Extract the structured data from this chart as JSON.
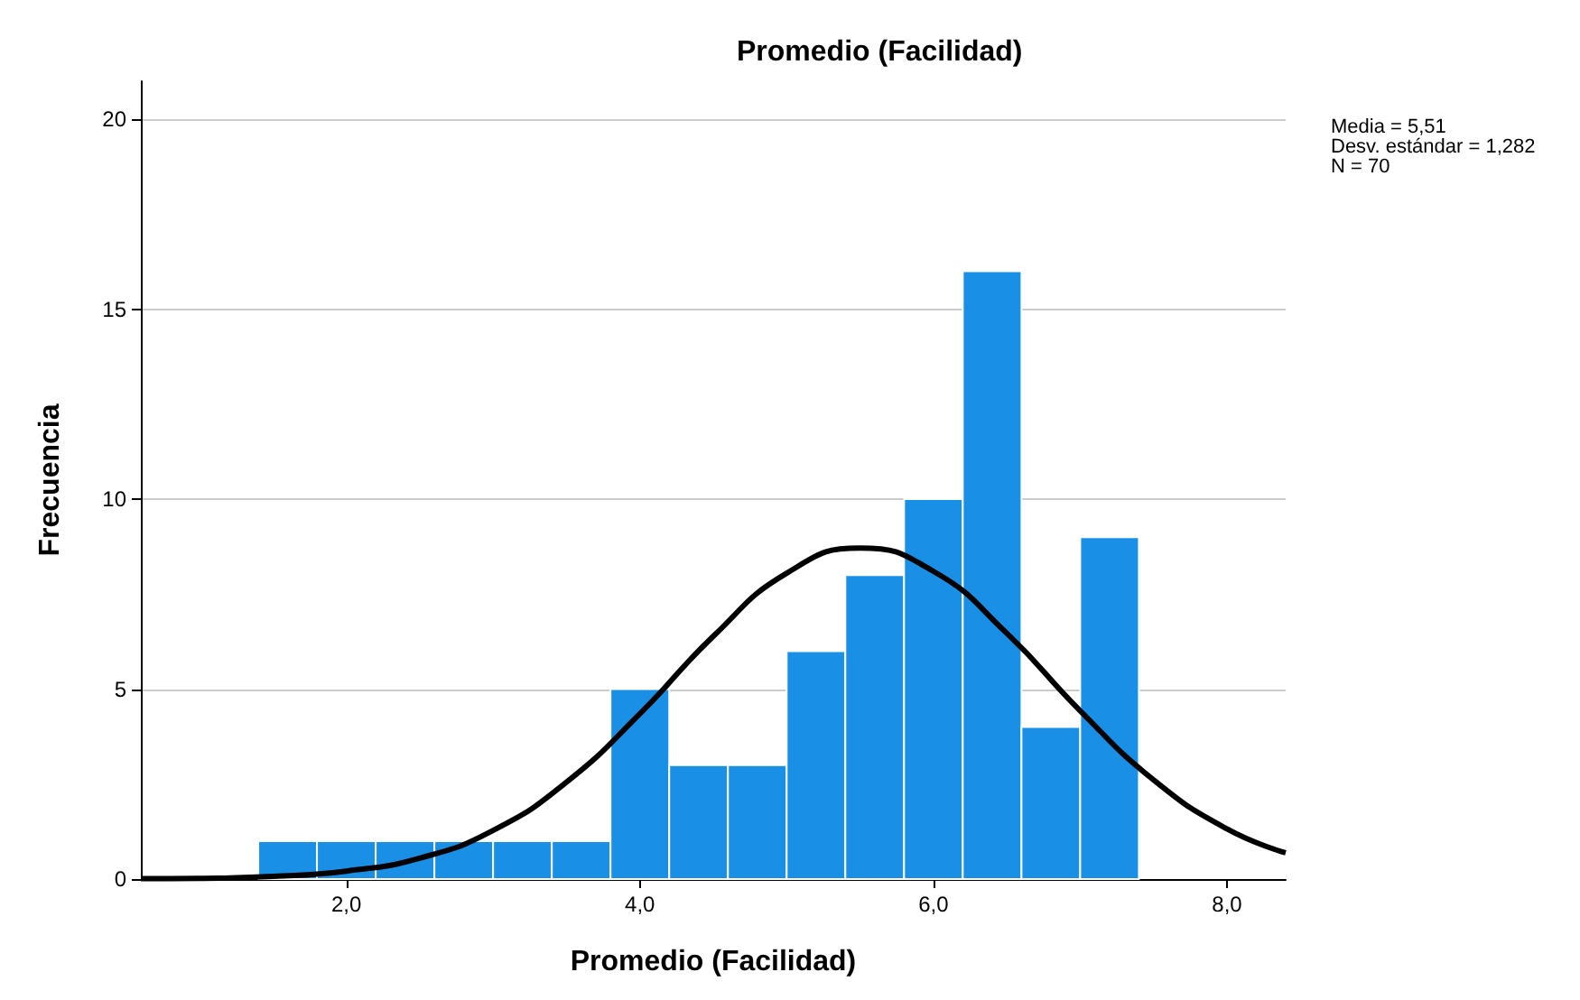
{
  "chart_data": {
    "type": "histogram",
    "title": "Promedio (Facilidad)",
    "xlabel": "Promedio (Facilidad)",
    "ylabel": "Frecuencia",
    "bins": [
      1.4,
      1.8,
      2.2,
      2.6,
      3.0,
      3.4,
      3.8,
      4.2,
      4.6,
      5.0,
      5.4,
      5.8,
      6.2,
      6.6,
      7.0,
      7.4
    ],
    "values": [
      1,
      1,
      1,
      1,
      1,
      1,
      5,
      3,
      3,
      6,
      8,
      10,
      16,
      4,
      9
    ],
    "color": "#1a8fe6",
    "series": [
      {
        "type": "line",
        "color": "#000000",
        "x": [
          0.6,
          1.0,
          1.5,
          2.0,
          2.5,
          3.0,
          3.5,
          4.0,
          4.5,
          5.0,
          5.5,
          6.0,
          6.5,
          7.0,
          7.5,
          8.0,
          8.4
        ],
        "values": [
          0.01,
          0.02,
          0.07,
          0.21,
          0.55,
          1.28,
          2.55,
          4.35,
          6.39,
          8.05,
          8.71,
          8.1,
          6.47,
          4.43,
          2.61,
          1.32,
          0.69
        ]
      }
    ],
    "xlim": [
      0.6,
      8.4
    ],
    "xticks": [
      {
        "value": 2,
        "label": "2,0"
      },
      {
        "value": 4,
        "label": "4,0"
      },
      {
        "value": 6,
        "label": "6,0"
      },
      {
        "value": 8,
        "label": "8,0"
      }
    ],
    "ylim": [
      0,
      21
    ],
    "yticks": [
      0,
      5,
      10,
      15,
      20
    ],
    "grid": "y",
    "annotations": [
      "Media = 5,51",
      "Desv. estándar = 1,282",
      "N = 70"
    ]
  }
}
